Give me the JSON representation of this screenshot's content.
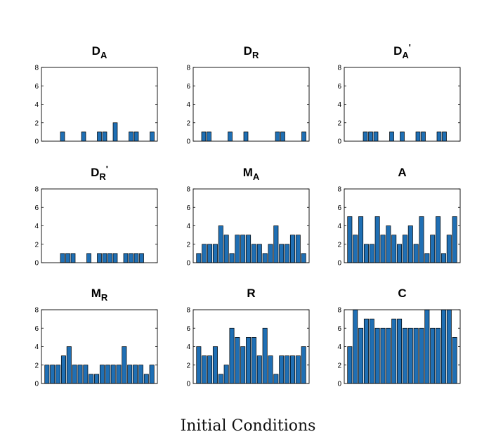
{
  "caption": "Initial Conditions",
  "style": {
    "bar_color": "#1f6fb4",
    "bar_edge": "#000000"
  },
  "chart_data": [
    {
      "type": "bar",
      "title": {
        "base": "D",
        "sub": "A",
        "prime": ""
      },
      "ylim": [
        0,
        8
      ],
      "yticks": [
        0,
        2,
        4,
        6,
        8
      ],
      "values": [
        0,
        0,
        0,
        1,
        0,
        0,
        0,
        1,
        0,
        0,
        1,
        1,
        0,
        2,
        0,
        0,
        1,
        1,
        0,
        0,
        1
      ]
    },
    {
      "type": "bar",
      "title": {
        "base": "D",
        "sub": "R",
        "prime": ""
      },
      "ylim": [
        0,
        8
      ],
      "yticks": [
        0,
        2,
        4,
        6,
        8
      ],
      "values": [
        0,
        1,
        1,
        0,
        0,
        0,
        1,
        0,
        0,
        1,
        0,
        0,
        0,
        0,
        0,
        1,
        1,
        0,
        0,
        0,
        1
      ]
    },
    {
      "type": "bar",
      "title": {
        "base": "D",
        "sub": "A",
        "prime": "'"
      },
      "ylim": [
        0,
        8
      ],
      "yticks": [
        0,
        2,
        4,
        6,
        8
      ],
      "values": [
        0,
        0,
        0,
        1,
        1,
        1,
        0,
        0,
        1,
        0,
        1,
        0,
        0,
        1,
        1,
        0,
        0,
        1,
        1,
        0,
        0
      ]
    },
    {
      "type": "bar",
      "title": {
        "base": "D",
        "sub": "R",
        "prime": "'"
      },
      "ylim": [
        0,
        8
      ],
      "yticks": [
        0,
        2,
        4,
        6,
        8
      ],
      "values": [
        0,
        0,
        0,
        1,
        1,
        1,
        0,
        0,
        1,
        0,
        1,
        1,
        1,
        1,
        0,
        1,
        1,
        1,
        1,
        0,
        0
      ]
    },
    {
      "type": "bar",
      "title": {
        "base": "M",
        "sub": "A",
        "prime": ""
      },
      "ylim": [
        0,
        8
      ],
      "yticks": [
        0,
        2,
        4,
        6,
        8
      ],
      "values": [
        1,
        2,
        2,
        2,
        4,
        3,
        1,
        3,
        3,
        3,
        2,
        2,
        1,
        2,
        4,
        2,
        2,
        3,
        3,
        1
      ]
    },
    {
      "type": "bar",
      "title": {
        "base": "A",
        "sub": "",
        "prime": ""
      },
      "ylim": [
        0,
        8
      ],
      "yticks": [
        0,
        2,
        4,
        6,
        8
      ],
      "values": [
        5,
        3,
        5,
        2,
        2,
        5,
        3,
        4,
        3,
        2,
        3,
        4,
        2,
        5,
        1,
        3,
        5,
        1,
        3,
        5
      ]
    },
    {
      "type": "bar",
      "title": {
        "base": "M",
        "sub": "R",
        "prime": ""
      },
      "ylim": [
        0,
        8
      ],
      "yticks": [
        0,
        2,
        4,
        6,
        8
      ],
      "values": [
        2,
        2,
        2,
        3,
        4,
        2,
        2,
        2,
        1,
        1,
        2,
        2,
        2,
        2,
        4,
        2,
        2,
        2,
        1,
        2
      ]
    },
    {
      "type": "bar",
      "title": {
        "base": "R",
        "sub": "",
        "prime": ""
      },
      "ylim": [
        0,
        8
      ],
      "yticks": [
        0,
        2,
        4,
        6,
        8
      ],
      "values": [
        4,
        3,
        3,
        4,
        1,
        2,
        6,
        5,
        4,
        5,
        5,
        3,
        6,
        3,
        1,
        3,
        3,
        3,
        3,
        4
      ]
    },
    {
      "type": "bar",
      "title": {
        "base": "C",
        "sub": "",
        "prime": ""
      },
      "ylim": [
        0,
        8
      ],
      "yticks": [
        0,
        2,
        4,
        6,
        8
      ],
      "values": [
        4,
        8,
        6,
        7,
        7,
        6,
        6,
        6,
        7,
        7,
        6,
        6,
        6,
        6,
        8,
        6,
        6,
        8,
        8,
        5
      ]
    }
  ]
}
